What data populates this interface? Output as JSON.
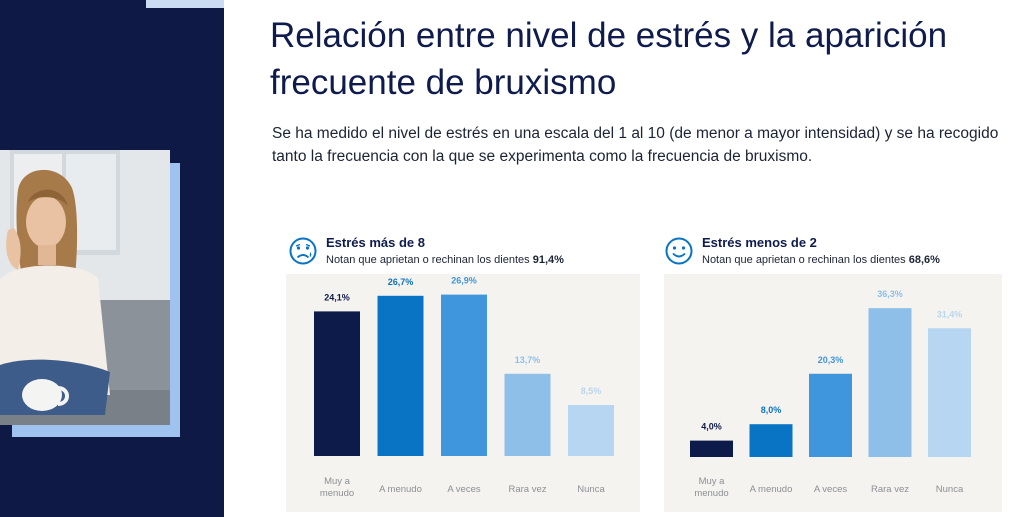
{
  "title": "Relación entre nivel de estrés y la aparición frecuente de bruxismo",
  "intro": "Se ha medido el nivel de estrés en una escala del 1 al 10 (de menor a mayor intensidad) y se ha recogido tanto la frecuencia con la que se experimenta como la frecuencia de bruxismo.",
  "icons": {
    "sad_face": "sad-face-icon",
    "happy_face": "happy-face-icon"
  },
  "colors": {
    "navy": "#0e1a45",
    "bar1": "#0d1b4b",
    "bar2": "#0a74c4",
    "bar3": "#3f96dc",
    "bar4": "#8dbfe9",
    "bar5": "#b7d6f1",
    "panel": "#f5f3ef"
  },
  "chart_data": [
    {
      "type": "bar",
      "title": "Estrés más de 8",
      "subtitle_text": "Notan que aprietan o rechinan los dientes",
      "subtitle_value": "91,4%",
      "categories": [
        "Muy a menudo",
        "A menudo",
        "A veces",
        "Rara vez",
        "Nunca"
      ],
      "values": [
        24.1,
        26.7,
        26.9,
        13.7,
        8.5
      ],
      "value_labels": [
        "24,1%",
        "26,7%",
        "26,9%",
        "13,7%",
        "8,5%"
      ],
      "ylim": [
        0,
        40
      ],
      "xlabel": "",
      "ylabel": "",
      "grid": false
    },
    {
      "type": "bar",
      "title": "Estrés menos de 2",
      "subtitle_text": "Notan que aprietan o rechinan los dientes",
      "subtitle_value": "68,6%",
      "categories": [
        "Muy a menudo",
        "A menudo",
        "A veces",
        "Rara vez",
        "Nunca"
      ],
      "values": [
        4.0,
        8.0,
        20.3,
        36.3,
        31.4
      ],
      "value_labels": [
        "4,0%",
        "8,0%",
        "20,3%",
        "36,3%",
        "31,4%"
      ],
      "ylim": [
        0,
        40
      ],
      "xlabel": "",
      "ylabel": "",
      "grid": false
    }
  ]
}
